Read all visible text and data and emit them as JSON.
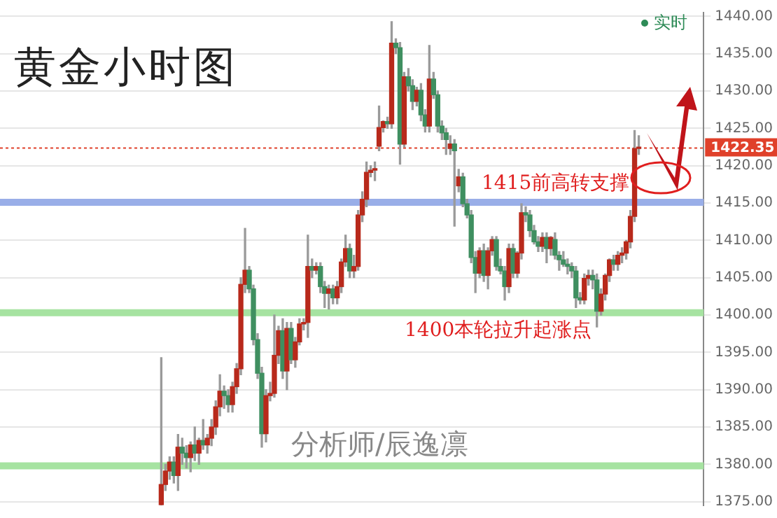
{
  "chart_data": {
    "type": "candlestick",
    "title": "黄金小时图",
    "categories": [
      null,
      null,
      null,
      null,
      null,
      null,
      null,
      null,
      null,
      null,
      null,
      null,
      null,
      null,
      null,
      null,
      null,
      null,
      null,
      null,
      null,
      null,
      null,
      null,
      null,
      null,
      null,
      null,
      null,
      null,
      null,
      null,
      null,
      null,
      null,
      null,
      null,
      null,
      null,
      null,
      null,
      null,
      null,
      null,
      null,
      null,
      null,
      null,
      null,
      null,
      null,
      null,
      null,
      null,
      null,
      null,
      null,
      null,
      null,
      null,
      null,
      null,
      null,
      null,
      null,
      null,
      null,
      null,
      null,
      null,
      null,
      null,
      null,
      null,
      null,
      null,
      null,
      null,
      null,
      null,
      null,
      null,
      null,
      null,
      null,
      null,
      null,
      null,
      null,
      null,
      null,
      null,
      null,
      null,
      null,
      null,
      null,
      null,
      null,
      null,
      null,
      null,
      null,
      null,
      null,
      null,
      null,
      null,
      null,
      null,
      null,
      null,
      null,
      null,
      null,
      null,
      null,
      null,
      null,
      null,
      null,
      null,
      null,
      null,
      null,
      null,
      null,
      null,
      null,
      null,
      null,
      null,
      null,
      null,
      null,
      null,
      null,
      null,
      null,
      null,
      null,
      null,
      null,
      null,
      null,
      null,
      null,
      null,
      null,
      null,
      null,
      null,
      null,
      null,
      null,
      null,
      null,
      null,
      null,
      null,
      null,
      null,
      null,
      null,
      null,
      null,
      null,
      null
    ],
    "ohlc": [
      null,
      null,
      null,
      null,
      null,
      null,
      null,
      null,
      null,
      null,
      null,
      null,
      null,
      null,
      null,
      null,
      null,
      null,
      null,
      null,
      null,
      null,
      null,
      null,
      null,
      null,
      null,
      null,
      null,
      null,
      null,
      null,
      null,
      null,
      null,
      null,
      null,
      null,
      [
        1374.6,
        1394.3,
        1374.5,
        1377.3
      ],
      [
        1377.3,
        1380.0,
        1376.5,
        1379.1
      ],
      [
        1379.1,
        1381.0,
        1378.0,
        1380.3
      ],
      [
        1380.3,
        1381.0,
        1377.5,
        1378.5
      ],
      [
        1378.5,
        1384.0,
        1376.5,
        1382.3
      ],
      [
        1382.3,
        1383.5,
        1380.0,
        1381.5
      ],
      [
        1381.5,
        1382.5,
        1379.5,
        1380.9
      ],
      [
        1380.9,
        1383.0,
        1379.0,
        1382.6
      ],
      [
        1382.6,
        1385.0,
        1380.5,
        1381.5
      ],
      [
        1381.5,
        1383.5,
        1380.0,
        1383.2
      ],
      [
        1383.2,
        1386.0,
        1382.0,
        1382.6
      ],
      [
        1382.6,
        1384.0,
        1381.5,
        1383.5
      ],
      [
        1383.5,
        1386.0,
        1382.5,
        1385.0
      ],
      [
        1385.0,
        1388.5,
        1384.0,
        1387.7
      ],
      [
        1387.7,
        1392.0,
        1386.5,
        1389.8
      ],
      [
        1389.8,
        1390.5,
        1387.5,
        1389.2
      ],
      [
        1389.2,
        1390.0,
        1387.0,
        1388.0
      ],
      [
        1388.0,
        1391.0,
        1387.0,
        1390.4
      ],
      [
        1390.4,
        1393.5,
        1389.5,
        1392.8
      ],
      [
        1392.8,
        1405.0,
        1392.0,
        1404.1
      ],
      [
        1404.1,
        1411.6,
        1403.0,
        1406.0
      ],
      [
        1406.0,
        1406.5,
        1403.0,
        1403.5
      ],
      [
        1403.5,
        1404.0,
        1396.0,
        1396.7
      ],
      [
        1396.7,
        1397.5,
        1391.5,
        1392.2
      ],
      [
        1392.2,
        1393.0,
        1382.3,
        1384.1
      ],
      [
        1384.1,
        1390.0,
        1383.0,
        1389.2
      ],
      [
        1389.2,
        1391.0,
        1388.5,
        1389.5
      ],
      [
        1389.5,
        1400.0,
        1389.0,
        1394.6
      ],
      [
        1394.6,
        1398.5,
        1393.5,
        1397.9
      ],
      [
        1397.9,
        1399.5,
        1391.5,
        1392.5
      ],
      [
        1392.5,
        1399.0,
        1390.0,
        1398.2
      ],
      [
        1398.2,
        1399.0,
        1393.5,
        1394.0
      ],
      [
        1394.0,
        1397.0,
        1393.0,
        1396.4
      ],
      [
        1396.4,
        1399.5,
        1396.0,
        1398.8
      ],
      [
        1398.8,
        1399.5,
        1398.0,
        1399.0
      ],
      [
        1399.0,
        1410.7,
        1397.0,
        1406.5
      ],
      [
        1406.5,
        1407.5,
        1405.0,
        1406.0
      ],
      [
        1406.0,
        1407.0,
        1405.5,
        1406.5
      ],
      [
        1406.5,
        1407.0,
        1403.0,
        1403.8
      ],
      [
        1403.8,
        1404.5,
        1401.0,
        1402.9
      ],
      [
        1402.9,
        1404.0,
        1400.8,
        1403.5
      ],
      [
        1403.5,
        1404.0,
        1401.5,
        1402.3
      ],
      [
        1402.3,
        1404.5,
        1401.5,
        1403.8
      ],
      [
        1403.8,
        1407.5,
        1403.0,
        1407.1
      ],
      [
        1407.1,
        1410.7,
        1406.5,
        1408.9
      ],
      [
        1408.9,
        1409.5,
        1405.0,
        1405.9
      ],
      [
        1405.9,
        1408.0,
        1405.0,
        1406.5
      ],
      [
        1406.5,
        1414.0,
        1406.0,
        1413.4
      ],
      [
        1413.4,
        1416.5,
        1412.5,
        1415.5
      ],
      [
        1415.5,
        1420.5,
        1414.5,
        1419.1
      ],
      [
        1419.1,
        1420.0,
        1418.5,
        1419.4
      ],
      [
        1419.4,
        1420.5,
        1418.0,
        1419.6
      ],
      [
        1422.6,
        1428.0,
        1422.0,
        1425.1
      ],
      [
        1425.1,
        1426.0,
        1424.5,
        1425.9
      ],
      [
        1425.9,
        1426.5,
        1425.0,
        1425.6
      ],
      [
        1425.6,
        1439.3,
        1425.0,
        1436.4
      ],
      [
        1436.4,
        1437.0,
        1435.0,
        1435.8
      ],
      [
        1435.8,
        1436.5,
        1420.2,
        1422.9
      ],
      [
        1422.9,
        1432.5,
        1422.5,
        1431.9
      ],
      [
        1431.9,
        1433.0,
        1430.0,
        1430.7
      ],
      [
        1430.7,
        1431.5,
        1427.5,
        1428.6
      ],
      [
        1428.6,
        1430.5,
        1428.0,
        1430.1
      ],
      [
        1430.1,
        1431.0,
        1426.0,
        1426.8
      ],
      [
        1426.8,
        1427.5,
        1424.5,
        1425.3
      ],
      [
        1425.3,
        1436.1,
        1424.5,
        1431.6
      ],
      [
        1431.6,
        1432.5,
        1429.0,
        1429.5
      ],
      [
        1429.5,
        1430.0,
        1424.5,
        1425.3
      ],
      [
        1425.3,
        1426.0,
        1423.5,
        1424.4
      ],
      [
        1424.4,
        1425.0,
        1421.5,
        1423.5
      ],
      [
        1422.3,
        1424.0,
        1421.5,
        1422.9
      ],
      [
        1422.9,
        1423.5,
        1411.9,
        1422.0
      ],
      [
        1417.3,
        1419.5,
        1416.5,
        1418.5
      ],
      [
        1418.5,
        1419.0,
        1414.5,
        1414.9
      ],
      [
        1414.9,
        1415.5,
        1413.0,
        1413.4
      ],
      [
        1413.4,
        1414.0,
        1407.0,
        1407.7
      ],
      [
        1407.7,
        1408.5,
        1403.0,
        1405.6
      ],
      [
        1405.6,
        1409.0,
        1405.0,
        1408.6
      ],
      [
        1408.6,
        1409.5,
        1404.5,
        1405.3
      ],
      [
        1405.3,
        1409.0,
        1403.5,
        1408.6
      ],
      [
        1408.6,
        1410.5,
        1408.0,
        1410.1
      ],
      [
        1410.1,
        1410.5,
        1406.0,
        1406.5
      ],
      [
        1406.5,
        1407.5,
        1405.5,
        1405.9
      ],
      [
        1405.9,
        1406.5,
        1402.0,
        1403.8
      ],
      [
        1403.8,
        1409.5,
        1403.0,
        1408.9
      ],
      [
        1408.9,
        1409.5,
        1405.0,
        1405.6
      ],
      [
        1405.6,
        1408.5,
        1405.0,
        1408.3
      ],
      [
        1408.3,
        1414.9,
        1407.5,
        1413.7
      ],
      [
        1413.7,
        1414.5,
        1412.5,
        1413.4
      ],
      [
        1413.4,
        1414.0,
        1410.5,
        1411.3
      ],
      [
        1411.3,
        1412.0,
        1409.5,
        1409.8
      ],
      [
        1409.8,
        1410.5,
        1408.5,
        1409.2
      ],
      [
        1409.2,
        1411.0,
        1408.5,
        1410.4
      ],
      [
        1410.4,
        1411.0,
        1407.0,
        1408.9
      ],
      [
        1408.9,
        1410.5,
        1408.0,
        1410.4
      ],
      [
        1410.1,
        1411.0,
        1407.5,
        1408.0
      ],
      [
        1408.0,
        1408.5,
        1406.0,
        1407.4
      ],
      [
        1407.4,
        1408.5,
        1406.5,
        1406.8
      ],
      [
        1406.8,
        1407.5,
        1405.5,
        1406.5
      ],
      [
        1406.5,
        1407.0,
        1405.0,
        1405.9
      ],
      [
        1405.9,
        1406.5,
        1401.0,
        1402.3
      ],
      [
        1402.3,
        1403.0,
        1401.5,
        1402.0
      ],
      [
        1402.0,
        1405.5,
        1401.5,
        1404.9
      ],
      [
        1404.9,
        1406.0,
        1404.0,
        1405.3
      ],
      [
        1405.3,
        1406.0,
        1403.5,
        1404.7
      ],
      [
        1404.7,
        1405.5,
        1398.4,
        1400.5
      ],
      [
        1400.5,
        1403.5,
        1400.0,
        1402.8
      ],
      [
        1402.8,
        1405.5,
        1402.0,
        1405.3
      ],
      [
        1405.3,
        1407.5,
        1404.5,
        1407.4
      ],
      [
        1407.4,
        1408.0,
        1406.0,
        1406.8
      ],
      [
        1406.8,
        1408.5,
        1406.0,
        1408.0
      ],
      [
        1408.0,
        1409.0,
        1407.0,
        1408.3
      ],
      [
        1408.3,
        1410.0,
        1407.5,
        1409.8
      ],
      [
        1409.8,
        1414.0,
        1409.0,
        1413.2
      ],
      [
        1413.2,
        1424.7,
        1412.5,
        1422.3
      ],
      [
        1422.3,
        1424.0,
        1421.5,
        1422.35
      ],
      null,
      null,
      null,
      null,
      null,
      null,
      null,
      null,
      null,
      null,
      null,
      null,
      null,
      null,
      null
    ],
    "ylim": [
      1374.5,
      1440.5
    ],
    "yticks": [
      {
        "value": 1375,
        "label": "1375.00"
      },
      {
        "value": 1380,
        "label": "1380.00"
      },
      {
        "value": 1385,
        "label": "1385.00"
      },
      {
        "value": 1390,
        "label": "1390.00"
      },
      {
        "value": 1395,
        "label": "1395.00"
      },
      {
        "value": 1400,
        "label": "1400.00"
      },
      {
        "value": 1405,
        "label": "1405.00"
      },
      {
        "value": 1410,
        "label": "1410.00"
      },
      {
        "value": 1415,
        "label": "1415.00"
      },
      {
        "value": 1420,
        "label": "1420.00"
      },
      {
        "value": 1425,
        "label": "1425.00"
      },
      {
        "value": 1430,
        "label": "1430.00"
      },
      {
        "value": 1435,
        "label": "1435.00"
      },
      {
        "value": 1440,
        "label": "1440.00"
      }
    ],
    "grid": "y",
    "ref_lines": [
      {
        "axis": "y",
        "value": 1379.8,
        "color": "#a6e3a1"
      },
      {
        "axis": "y",
        "value": 1400.3,
        "label": "1400本轮拉升起涨点",
        "color": "#a6e3a1"
      },
      {
        "axis": "y",
        "value": 1415.1,
        "label": "1415前高转支撑",
        "color": "#99aee8"
      },
      {
        "axis": "y",
        "value": 1422.35,
        "label": "1422.35",
        "color": "#e0402a",
        "line_style": "dotted"
      }
    ],
    "annotations": [
      "实时",
      "分析师/辰逸凛"
    ]
  }
}
